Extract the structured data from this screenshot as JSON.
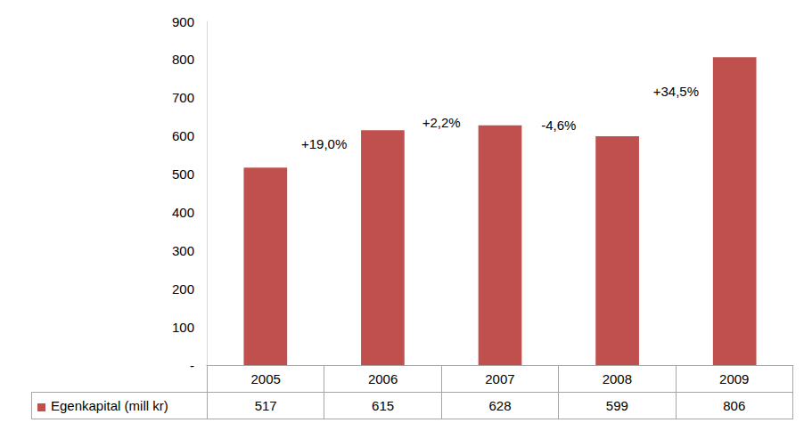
{
  "chart_data": {
    "type": "bar",
    "categories": [
      "2005",
      "2006",
      "2007",
      "2008",
      "2009"
    ],
    "series": [
      {
        "name": "Egenkapital (mill kr)",
        "color": "#c0504d",
        "values": [
          517,
          615,
          628,
          599,
          806
        ]
      }
    ],
    "annotations": [
      "+19,0%",
      "+2,2%",
      "-4,6%",
      "+34,5%"
    ],
    "ylim": [
      0,
      900
    ],
    "yticks": [
      {
        "value": 0,
        "label": "-"
      },
      100,
      200,
      300,
      400,
      500,
      600,
      700,
      800,
      900
    ],
    "grid": false
  }
}
